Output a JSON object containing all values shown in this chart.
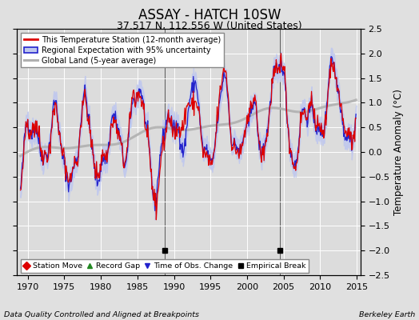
{
  "title": "ASSAY - HATCH 10SW",
  "subtitle": "37.517 N, 112.556 W (United States)",
  "ylabel": "Temperature Anomaly (°C)",
  "xlabel_left": "Data Quality Controlled and Aligned at Breakpoints",
  "xlabel_right": "Berkeley Earth",
  "xlim": [
    1968.5,
    2015.5
  ],
  "ylim": [
    -2.5,
    2.5
  ],
  "yticks": [
    -2.5,
    -2,
    -1.5,
    -1,
    -0.5,
    0,
    0.5,
    1,
    1.5,
    2,
    2.5
  ],
  "xticks": [
    1970,
    1975,
    1980,
    1985,
    1990,
    1995,
    2000,
    2005,
    2010,
    2015
  ],
  "bg_color": "#e0e0e0",
  "plot_bg_color": "#dcdcdc",
  "grid_color": "#ffffff",
  "station_line_color": "#dd0000",
  "regional_line_color": "#2222cc",
  "regional_fill_color": "#c0c8ee",
  "global_line_color": "#b0b0b0",
  "empirical_break_years": [
    1988.7,
    2004.5
  ],
  "legend_labels": [
    "This Temperature Station (12-month average)",
    "Regional Expectation with 95% uncertainty",
    "Global Land (5-year average)"
  ],
  "marker_legend_labels": [
    "Station Move",
    "Record Gap",
    "Time of Obs. Change",
    "Empirical Break"
  ],
  "title_fontsize": 12,
  "subtitle_fontsize": 9,
  "tick_fontsize": 8,
  "label_fontsize": 8
}
